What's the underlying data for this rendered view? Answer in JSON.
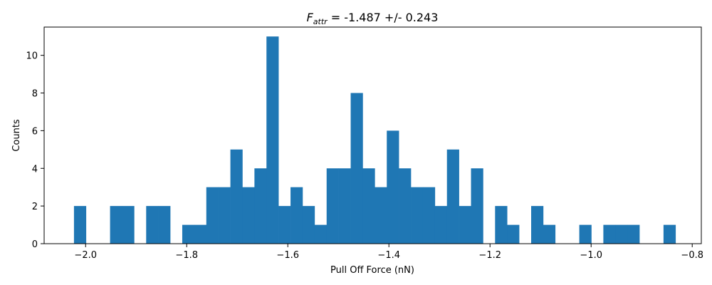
{
  "chart_data": {
    "type": "bar",
    "title": {
      "symbol": "F",
      "subscript": "attr",
      "text": " = -1.487 +/- 0.243"
    },
    "xlabel": "Pull Off Force (nN)",
    "ylabel": "Counts",
    "xlim": [
      -2.082,
      -0.782
    ],
    "ylim": [
      0,
      11.5
    ],
    "xticks": [
      -2.0,
      -1.8,
      -1.6,
      -1.4,
      -1.2,
      -1.0,
      -0.8
    ],
    "xtick_labels": [
      "−2.0",
      "−1.8",
      "−1.6",
      "−1.4",
      "−1.2",
      "−1.0",
      "−0.8"
    ],
    "yticks": [
      0,
      2,
      4,
      6,
      8,
      10
    ],
    "ytick_labels": [
      "0",
      "2",
      "4",
      "6",
      "8",
      "10"
    ],
    "grid": false,
    "bar_color": "#1f77b4",
    "bin_start": -2.023,
    "bin_width": 0.0238,
    "counts": [
      2,
      0,
      0,
      2,
      2,
      0,
      2,
      2,
      0,
      1,
      1,
      3,
      3,
      5,
      3,
      4,
      11,
      2,
      3,
      2,
      1,
      4,
      4,
      8,
      4,
      3,
      6,
      4,
      3,
      3,
      2,
      5,
      2,
      4,
      0,
      2,
      1,
      0,
      2,
      1,
      0,
      0,
      1,
      0,
      1,
      1,
      1,
      0,
      0,
      1
    ]
  }
}
